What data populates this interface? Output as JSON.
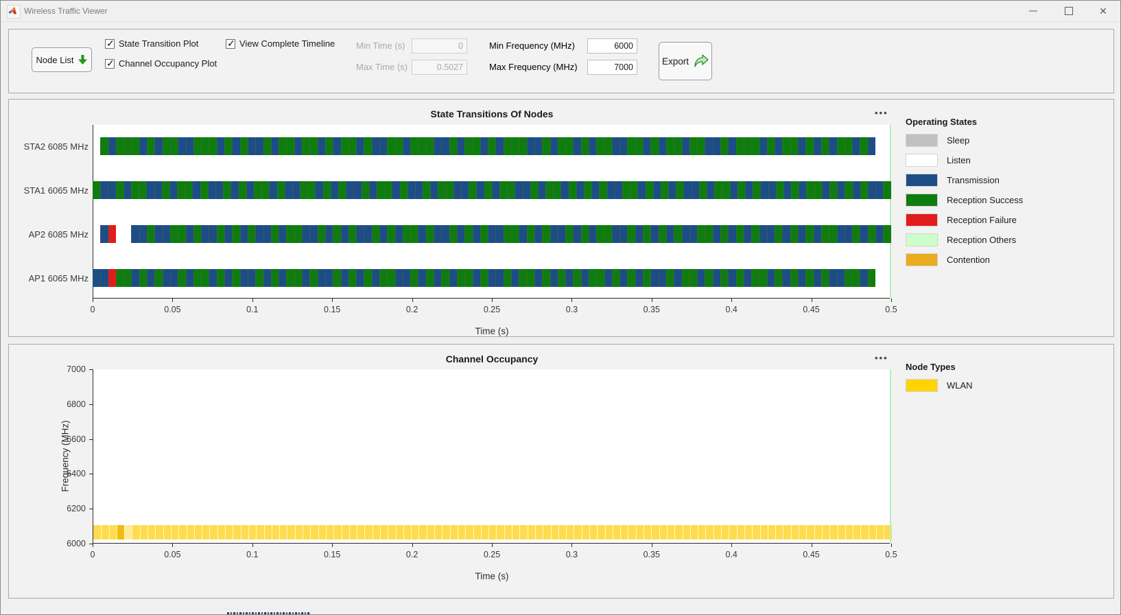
{
  "window": {
    "title": "Wireless Traffic Viewer",
    "close_glyph": "✕"
  },
  "toolbar": {
    "node_list_label": "Node List",
    "checkboxes": [
      {
        "label": "State Transition Plot",
        "checked": true
      },
      {
        "label": "Channel Occupancy Plot",
        "checked": true
      },
      {
        "label": "View Complete Timeline",
        "checked": true
      }
    ],
    "fields": [
      {
        "label": "Min Time (s)",
        "value": "0",
        "disabled": true
      },
      {
        "label": "Max Time (s)",
        "value": "0.5027",
        "disabled": true
      },
      {
        "label": "Min Frequency (MHz)",
        "value": "6000",
        "disabled": false
      },
      {
        "label": "Max Frequency (MHz)",
        "value": "7000",
        "disabled": false
      }
    ],
    "export_label": "Export",
    "check_glyph": "✓"
  },
  "colors": {
    "G": "#0e7d10",
    "B": "#1c4d87",
    "R": "#e21c1c",
    "W": "transparent",
    "sleep": "#c0c0c0",
    "listen": "#ffffff",
    "reception_others": "#ccffcc",
    "contention": "#e9ab20",
    "wlan": "#ffd400",
    "band_normal": "rgba(255,210,30,0.78)",
    "band_dark": "#f0bc0e",
    "band_light": "rgba(255,232,130,0.85)",
    "timeline_cursor": "#b7f0b7"
  },
  "chart_data": [
    {
      "type": "heatmap",
      "title": "State Transitions Of Nodes",
      "xlabel": "Time (s)",
      "menu_icon": "•••",
      "xlim": [
        0,
        0.5
      ],
      "xticks": [
        "0",
        "0.05",
        "0.1",
        "0.15",
        "0.2",
        "0.25",
        "0.3",
        "0.35",
        "0.4",
        "0.45",
        "0.5"
      ],
      "legend_title": "Operating States",
      "legend": [
        {
          "label": "Sleep",
          "color": "#c0c0c0"
        },
        {
          "label": "Listen",
          "color": "#ffffff"
        },
        {
          "label": "Transmission",
          "color": "#1c4d87"
        },
        {
          "label": "Reception Success",
          "color": "#0e7d10"
        },
        {
          "label": "Reception Failure",
          "color": "#e21c1c"
        },
        {
          "label": "Reception Others",
          "color": "#ccffcc"
        },
        {
          "label": "Contention",
          "color": "#e9ab20"
        }
      ],
      "rows": [
        {
          "label": "STA2 6085 MHz",
          "pattern": "WGBGGGBGBGGBBGGGBGBGBBGBGGBGGBGBGGBGBBGGBGGGBBGBGGBGBGGGBBGBGGBGBGGBBGGBGBGGBGGBBGBGGGBGBGGBGBGBGGBGBWW"
        },
        {
          "label": "STA1 6065 MHz",
          "pattern": "GBBGBGGBBGBGGBGBBGBGBGGBGBBGGBGBGBBGBGGBGBBGBGGBBGBGBGGBBGBGGBGBGBGBBGGBGBGBGBBGBGGBGBGBBGBGBGGBGBGBGBBG"
        },
        {
          "label": "AP2 6085 MHz",
          "pattern": "WBRWWBBGBBGGBGBBGBGBGBBGBGGBBGBGBGBBGBGBGGBGBBGBGBGBBGGBGBGBBGBGBGGBBGBGBGBGBBGGBGBGBGBBGBGBGBGGBBGBGBG"
        },
        {
          "label": "AP1 6065 MHz",
          "pattern": "BBRGGBGBGBBGBGGBGBGBBGBGBGGBGBBGBGBGBGGBBGBGBGBGGBGBBGBGGBGBGBGBGGBGBGBGBBGBGGBGBGBGBGGBGBGBGBGBBGGBGWW"
        }
      ]
    },
    {
      "type": "heatmap",
      "title": "Channel Occupancy",
      "xlabel": "Time (s)",
      "ylabel": "Frequency (MHz)",
      "menu_icon": "•••",
      "xlim": [
        0,
        0.5
      ],
      "ylim": [
        6000,
        7000
      ],
      "xticks": [
        "0",
        "0.05",
        "0.1",
        "0.15",
        "0.2",
        "0.25",
        "0.3",
        "0.35",
        "0.4",
        "0.45",
        "0.5"
      ],
      "yticks": [
        "7000",
        "6800",
        "6600",
        "6400",
        "6200",
        "6000"
      ],
      "legend_title": "Node Types",
      "legend": [
        {
          "label": "WLAN",
          "color": "#ffd400"
        }
      ],
      "band": {
        "freq_low": 6022,
        "freq_high": 6106,
        "pattern": "YYYDLYYYYYYYYYYYYYYYYYYYYYYYYYYYYYYYYYYYYYYYYYYYYYYYYYYYYYYYYYYYYYYYYYYYYYYYYYYYYYYYYYYYYYYYYYYYYYYYYYY"
      }
    }
  ]
}
